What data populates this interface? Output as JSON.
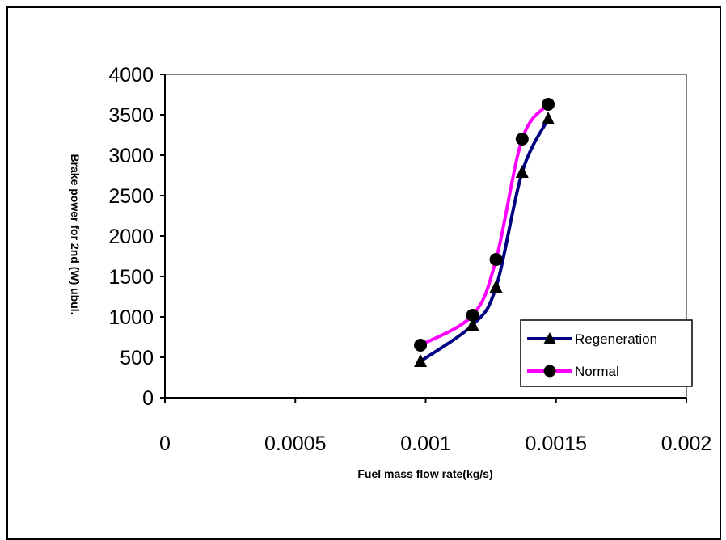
{
  "chart_data": {
    "type": "line",
    "xlabel": "Fuel mass flow rate(kg/s)",
    "ylabel": "Brake power for 2nd (W) ubul.",
    "xlim": [
      0,
      0.002
    ],
    "ylim": [
      0,
      4000
    ],
    "x_ticks": [
      "0",
      "0.0005",
      "0.001",
      "0.0015",
      "0.002"
    ],
    "y_ticks": [
      "0",
      "500",
      "1000",
      "1500",
      "2000",
      "2500",
      "3000",
      "3500",
      "4000"
    ],
    "grid": false,
    "legend_position": "bottom-right",
    "series": [
      {
        "name": "Regeneration",
        "color": "#000080",
        "marker": "triangle",
        "x": [
          0.00098,
          0.00118,
          0.00127,
          0.00137,
          0.00147
        ],
        "y": [
          450,
          900,
          1370,
          2790,
          3450
        ]
      },
      {
        "name": "Normal",
        "color": "#ff00ff",
        "marker": "circle",
        "x": [
          0.00098,
          0.00118,
          0.00127,
          0.00137,
          0.00147
        ],
        "y": [
          650,
          1020,
          1710,
          3200,
          3630
        ]
      }
    ]
  }
}
